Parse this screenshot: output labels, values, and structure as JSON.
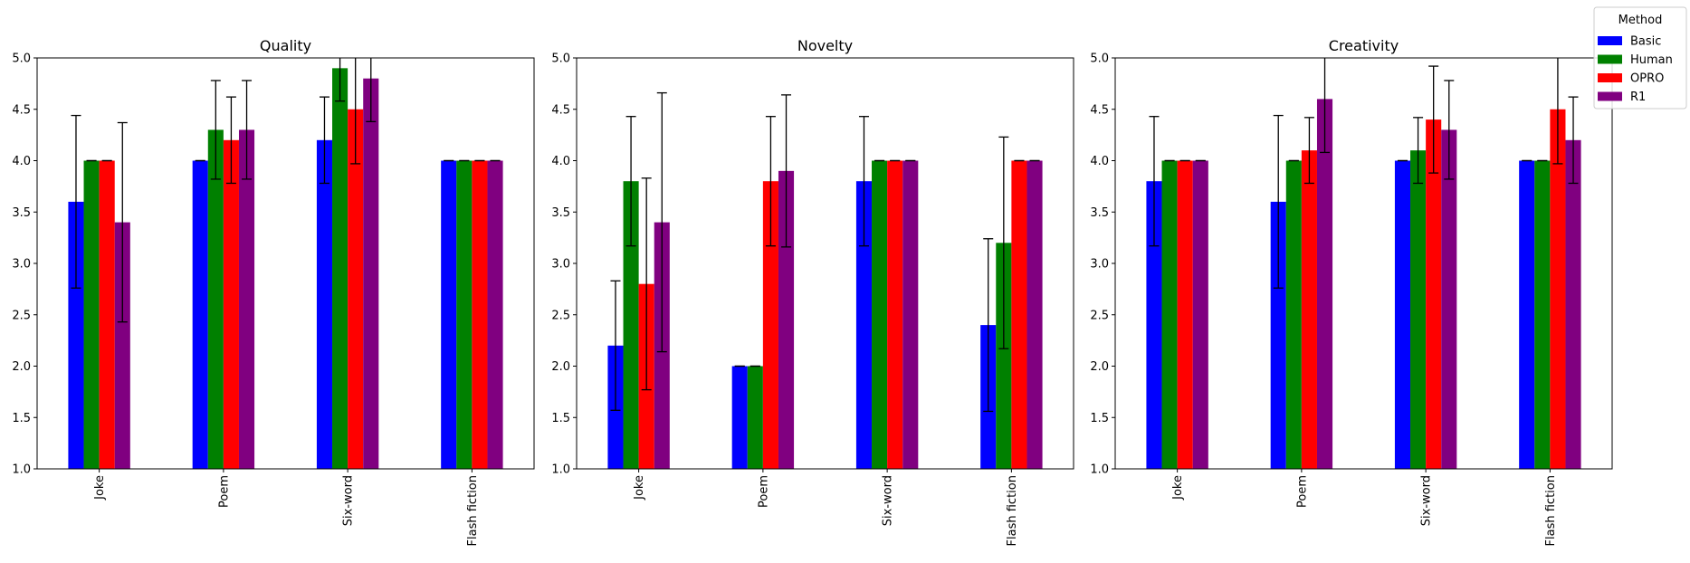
{
  "legend": {
    "title": "Method",
    "placement": "top-right (outside)",
    "entries": [
      {
        "name": "Basic",
        "color": "#0000ff"
      },
      {
        "name": "Human",
        "color": "#008000"
      },
      {
        "name": "OPRO",
        "color": "#ff0000"
      },
      {
        "name": "R1",
        "color": "#800080"
      }
    ]
  },
  "chart_data": [
    {
      "type": "bar",
      "title": "Quality",
      "categories": [
        "Joke",
        "Poem",
        "Six-word",
        "Flash fiction"
      ],
      "ylim": [
        1.0,
        5.0
      ],
      "yticks": [
        "1.0",
        "1.5",
        "2.0",
        "2.5",
        "3.0",
        "3.5",
        "4.0",
        "4.5",
        "5.0"
      ],
      "grid": false,
      "series": [
        {
          "name": "Basic",
          "values": [
            3.6,
            4.0,
            4.2,
            4.0
          ],
          "errors": [
            0.84,
            0.0,
            0.42,
            0.0
          ]
        },
        {
          "name": "Human",
          "values": [
            4.0,
            4.3,
            4.9,
            4.0
          ],
          "errors": [
            0.0,
            0.48,
            0.32,
            0.0
          ]
        },
        {
          "name": "OPRO",
          "values": [
            4.0,
            4.2,
            4.5,
            4.0
          ],
          "errors": [
            0.0,
            0.42,
            0.53,
            0.0
          ]
        },
        {
          "name": "R1",
          "values": [
            3.4,
            4.3,
            4.8,
            4.0
          ],
          "errors": [
            0.97,
            0.48,
            0.42,
            0.0
          ]
        }
      ]
    },
    {
      "type": "bar",
      "title": "Novelty",
      "categories": [
        "Joke",
        "Poem",
        "Six-word",
        "Flash fiction"
      ],
      "ylim": [
        1.0,
        5.0
      ],
      "yticks": [
        "1.0",
        "1.5",
        "2.0",
        "2.5",
        "3.0",
        "3.5",
        "4.0",
        "4.5",
        "5.0"
      ],
      "grid": false,
      "series": [
        {
          "name": "Basic",
          "values": [
            2.2,
            2.0,
            3.8,
            2.4
          ],
          "errors": [
            0.63,
            0.0,
            0.63,
            0.84
          ]
        },
        {
          "name": "Human",
          "values": [
            3.8,
            2.0,
            4.0,
            3.2
          ],
          "errors": [
            0.63,
            0.0,
            0.0,
            1.03
          ]
        },
        {
          "name": "OPRO",
          "values": [
            2.8,
            3.8,
            4.0,
            4.0
          ],
          "errors": [
            1.03,
            0.63,
            0.0,
            0.0
          ]
        },
        {
          "name": "R1",
          "values": [
            3.4,
            3.9,
            4.0,
            4.0
          ],
          "errors": [
            1.26,
            0.74,
            0.0,
            0.0
          ]
        }
      ]
    },
    {
      "type": "bar",
      "title": "Creativity",
      "categories": [
        "Joke",
        "Poem",
        "Six-word",
        "Flash fiction"
      ],
      "ylim": [
        1.0,
        5.0
      ],
      "yticks": [
        "1.0",
        "1.5",
        "2.0",
        "2.5",
        "3.0",
        "3.5",
        "4.0",
        "4.5",
        "5.0"
      ],
      "grid": false,
      "series": [
        {
          "name": "Basic",
          "values": [
            3.8,
            3.6,
            4.0,
            4.0
          ],
          "errors": [
            0.63,
            0.84,
            0.0,
            0.0
          ]
        },
        {
          "name": "Human",
          "values": [
            4.0,
            4.0,
            4.1,
            4.0
          ],
          "errors": [
            0.0,
            0.0,
            0.32,
            0.0
          ]
        },
        {
          "name": "OPRO",
          "values": [
            4.0,
            4.1,
            4.4,
            4.5
          ],
          "errors": [
            0.0,
            0.32,
            0.52,
            0.53
          ]
        },
        {
          "name": "R1",
          "values": [
            4.0,
            4.6,
            4.3,
            4.2
          ],
          "errors": [
            0.0,
            0.52,
            0.48,
            0.42
          ]
        }
      ]
    }
  ]
}
